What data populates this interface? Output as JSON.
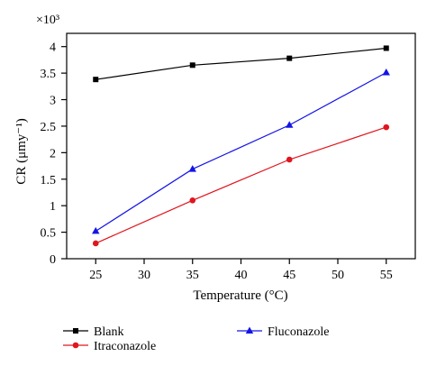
{
  "chart_data": {
    "type": "line",
    "multiplier_label": "×10³",
    "xlabel": "Temperature (°C)",
    "ylabel": "CR (μmy⁻¹)",
    "xlim": [
      22,
      58
    ],
    "ylim": [
      0,
      4.25
    ],
    "xticks": [
      25,
      30,
      35,
      40,
      45,
      50,
      55
    ],
    "yticks": [
      0,
      0.5,
      1,
      1.5,
      2,
      2.5,
      3,
      3.5,
      4
    ],
    "ytick_labels": [
      "0",
      "0.5",
      "1",
      "1.5",
      "2",
      "2.5",
      "3",
      "3.5",
      "4"
    ],
    "grid": false,
    "legend_position": "bottom",
    "series": [
      {
        "name": "Blank",
        "color": "#000000",
        "marker": "square",
        "x": [
          25,
          35,
          45,
          55
        ],
        "y": [
          3.38,
          3.65,
          3.78,
          3.97
        ]
      },
      {
        "name": "Itraconazole",
        "color": "#e0161e",
        "marker": "circle",
        "x": [
          25,
          35,
          45,
          55
        ],
        "y": [
          0.29,
          1.1,
          1.87,
          2.48
        ]
      },
      {
        "name": "Fluconazole",
        "color": "#1414e6",
        "marker": "triangle",
        "x": [
          25,
          35,
          45,
          55
        ],
        "y": [
          0.52,
          1.69,
          2.52,
          3.51
        ]
      }
    ]
  }
}
